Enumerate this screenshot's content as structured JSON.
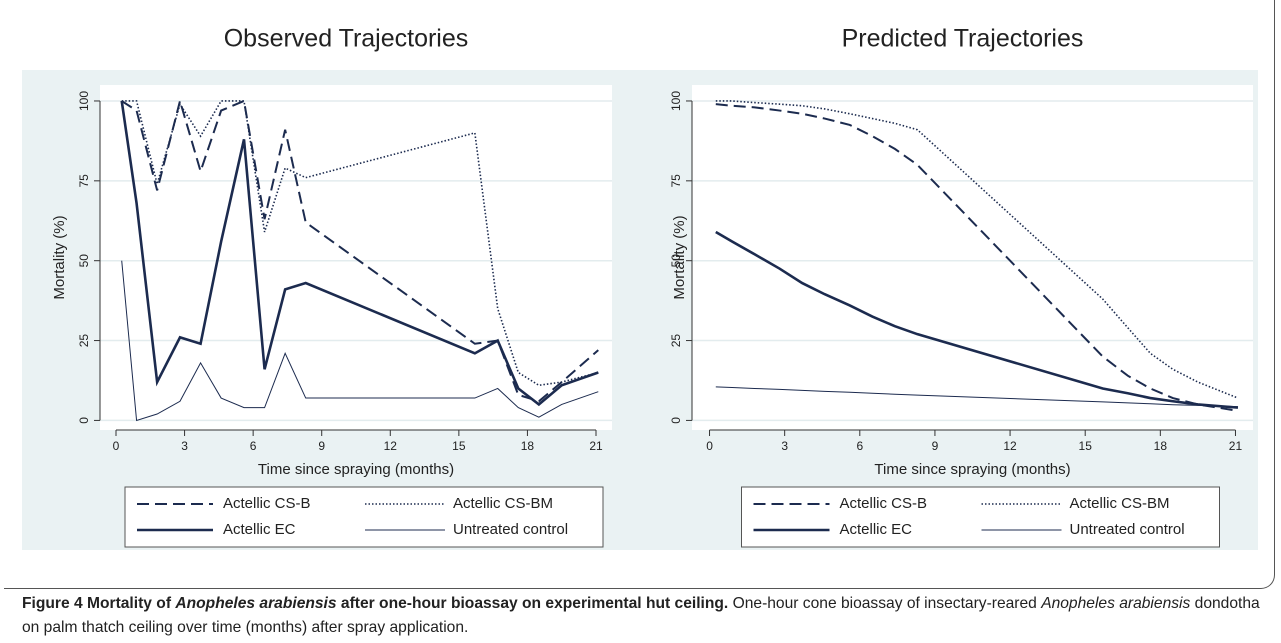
{
  "chart_data": [
    {
      "type": "line",
      "title": "Observed Trajectories",
      "xlabel": "Time since spraying (months)",
      "ylabel": "Mortality (%)",
      "x": [
        0.25,
        0.9,
        1.8,
        2.8,
        3.7,
        4.6,
        5.6,
        6.5,
        7.4,
        8.3,
        15.7,
        16.7,
        17.6,
        18.5,
        19.5,
        21.1
      ],
      "series": [
        {
          "name": "Actellic CS-B",
          "color": "#1c2b4f",
          "line_style": "dashed",
          "width": 2,
          "values": [
            100,
            97,
            72,
            100,
            78,
            97,
            100,
            63,
            91,
            62,
            24,
            25,
            8,
            6,
            12,
            22
          ]
        },
        {
          "name": "Actellic CS-BM",
          "color": "#1c2b4f",
          "line_style": "dotted",
          "width": 1.6,
          "values": [
            100,
            100,
            74,
            99,
            89,
            100,
            100,
            59,
            79,
            76,
            90,
            35,
            15,
            11,
            12,
            15
          ]
        },
        {
          "name": "Actellic EC",
          "color": "#1c2b4f",
          "line_style": "solid",
          "width": 2.6,
          "values": [
            100,
            68,
            12,
            26,
            24,
            56,
            88,
            16,
            41,
            43,
            21,
            25,
            10,
            5,
            11,
            15
          ]
        },
        {
          "name": "Untreated control",
          "color": "#1c2b4f",
          "line_style": "solid",
          "width": 1,
          "values": [
            50,
            0,
            2,
            6,
            18,
            7,
            4,
            4,
            21,
            7,
            7,
            10,
            4,
            1,
            5,
            9
          ]
        }
      ],
      "xlim": [
        -0.7,
        21.7
      ],
      "ylim": [
        -3,
        105
      ],
      "xticks": [
        0,
        3,
        6,
        9,
        12,
        15,
        18,
        21
      ],
      "yticks": [
        0,
        25,
        50,
        75,
        100
      ],
      "grid": true,
      "legend": "bottom"
    },
    {
      "type": "line",
      "title": "Predicted Trajectories",
      "xlabel": "Time since spraying (months)",
      "ylabel": "Mortality (%)",
      "x": [
        0.25,
        0.9,
        1.8,
        2.8,
        3.7,
        4.6,
        5.6,
        6.5,
        7.4,
        8.3,
        15.7,
        16.7,
        17.6,
        18.5,
        19.5,
        21.1
      ],
      "series": [
        {
          "name": "Actellic CS-B",
          "color": "#1c2b4f",
          "line_style": "dashed",
          "width": 2,
          "values": [
            99,
            98.5,
            98,
            97,
            96,
            94.5,
            92.5,
            89,
            85,
            80,
            20,
            14,
            10,
            7,
            5,
            3
          ]
        },
        {
          "name": "Actellic CS-BM",
          "color": "#1c2b4f",
          "line_style": "dotted",
          "width": 1.6,
          "values": [
            100,
            100,
            99.5,
            99,
            98.5,
            97.5,
            96,
            94.5,
            93,
            91,
            38,
            29,
            21,
            16,
            12,
            7
          ]
        },
        {
          "name": "Actellic EC",
          "color": "#1c2b4f",
          "line_style": "solid",
          "width": 2.6,
          "values": [
            59,
            56,
            52,
            47.5,
            43,
            39.5,
            36,
            32.5,
            29.5,
            27,
            10,
            8.5,
            7,
            6,
            5,
            4
          ]
        },
        {
          "name": "Untreated control",
          "color": "#1c2b4f",
          "line_style": "solid",
          "width": 1,
          "values": [
            10.5,
            10.3,
            10,
            9.7,
            9.4,
            9.1,
            8.8,
            8.5,
            8.2,
            7.9,
            5.8,
            5.5,
            5.2,
            4.9,
            4.7,
            4.3
          ]
        }
      ],
      "xlim": [
        -0.7,
        21.7
      ],
      "ylim": [
        -3,
        105
      ],
      "xticks": [
        0,
        3,
        6,
        9,
        12,
        15,
        18,
        21
      ],
      "yticks": [
        0,
        25,
        50,
        75,
        100
      ],
      "grid": true,
      "legend": "bottom"
    }
  ],
  "caption": {
    "heading": [
      "Figure 4 Mortality of",
      "Anopheles arabiensis",
      "after one-hour bioassay on experimental hut ceiling."
    ],
    "text": [
      "One-hour cone bioassay of insectary-reared",
      "Anopheles arabiensis",
      "dondotha on palm thatch ceiling over time (months) after spray application."
    ]
  }
}
